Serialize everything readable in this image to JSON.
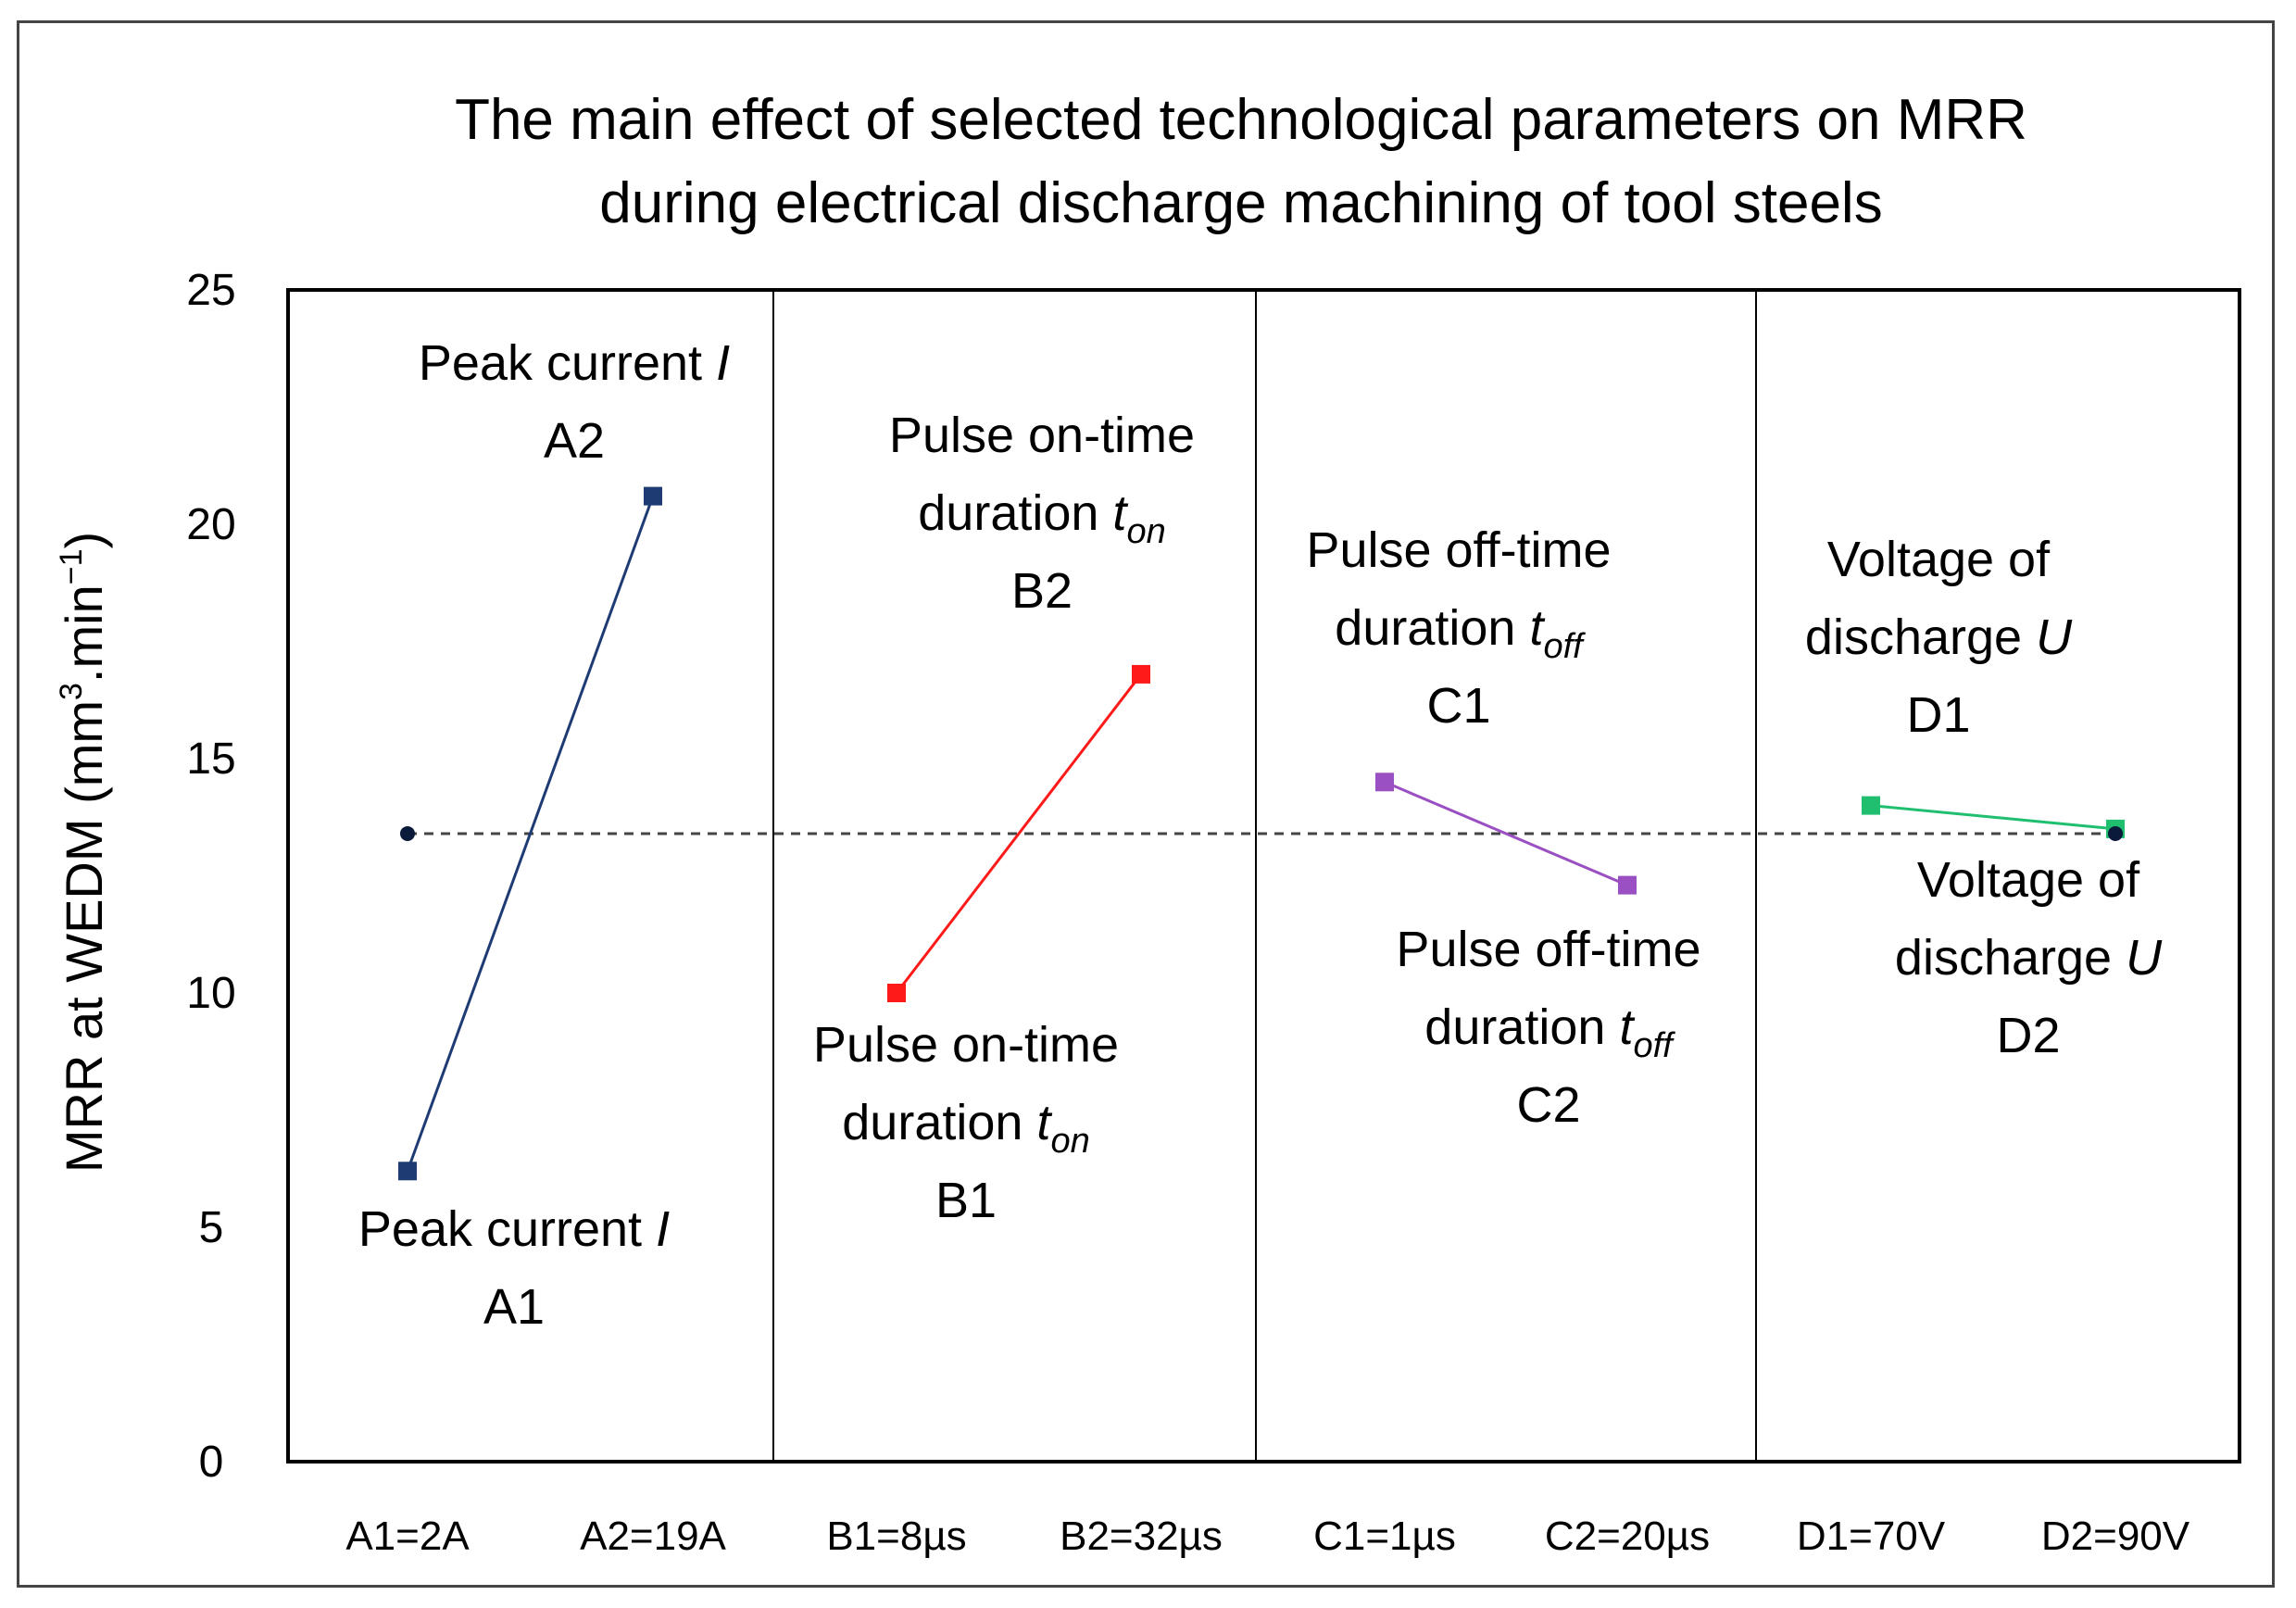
{
  "chart_data": {
    "type": "line",
    "title_lines": [
      "The main effect of selected technological parameters on MRR",
      "during electrical discharge machining of tool steels"
    ],
    "ylabel": "MRR at WEDM (mm³.min⁻¹)",
    "ylabel_parts": {
      "prefix": "MRR at WEDM (mm",
      "sup1": "3",
      "middle": ".min",
      "sup2": "−1",
      "suffix": ")"
    },
    "ylim": [
      0,
      25
    ],
    "yticks": [
      0,
      5,
      10,
      15,
      20,
      25
    ],
    "categories": [
      "A1=2A",
      "A2=19A",
      "B1=8µs",
      "B2=32µs",
      "C1=1µs",
      "C2=20µs",
      "D1=70V",
      "D2=90V"
    ],
    "grand_mean": 13.4,
    "series": [
      {
        "name": "Peak current I",
        "color": "#1f3b73",
        "x": [
          "A1=2A",
          "A2=19A"
        ],
        "values": [
          6.2,
          20.6
        ]
      },
      {
        "name": "Pulse on-time duration t_on",
        "color": "#ff1a1a",
        "x": [
          "B1=8µs",
          "B2=32µs"
        ],
        "values": [
          10.0,
          16.8
        ]
      },
      {
        "name": "Pulse off-time duration t_off",
        "color": "#9a4fc2",
        "x": [
          "C1=1µs",
          "C2=20µs"
        ],
        "values": [
          14.5,
          12.3
        ]
      },
      {
        "name": "Voltage of discharge U",
        "color": "#1fbf6f",
        "x": [
          "D1=70V",
          "D2=90V"
        ],
        "values": [
          14.0,
          13.5
        ]
      }
    ],
    "annotations": [
      {
        "id": "A1",
        "lines": [
          {
            "t": "Peak current ",
            "i": "I"
          },
          {
            "t": "A1"
          }
        ]
      },
      {
        "id": "A2",
        "lines": [
          {
            "t": "Peak current ",
            "i": "I"
          },
          {
            "t": "A2"
          }
        ]
      },
      {
        "id": "B1",
        "lines": [
          {
            "t": "Pulse on-time"
          },
          {
            "t": "duration ",
            "i": "t",
            "sub": "on"
          },
          {
            "t": "B1"
          }
        ]
      },
      {
        "id": "B2",
        "lines": [
          {
            "t": "Pulse on-time"
          },
          {
            "t": "duration ",
            "i": "t",
            "sub": "on"
          },
          {
            "t": "B2"
          }
        ]
      },
      {
        "id": "C1",
        "lines": [
          {
            "t": "Pulse off-time"
          },
          {
            "t": "duration ",
            "i": "t",
            "sub": "off"
          },
          {
            "t": "C1"
          }
        ]
      },
      {
        "id": "C2",
        "lines": [
          {
            "t": "Pulse off-time"
          },
          {
            "t": "duration ",
            "i": "t",
            "sub": "off"
          },
          {
            "t": "C2"
          }
        ]
      },
      {
        "id": "D1",
        "lines": [
          {
            "t": "Voltage of"
          },
          {
            "t": "discharge ",
            "i": "U"
          },
          {
            "t": "D1"
          }
        ]
      },
      {
        "id": "D2",
        "lines": [
          {
            "t": "Voltage of"
          },
          {
            "t": "discharge ",
            "i": "U"
          },
          {
            "t": "D2"
          }
        ]
      }
    ],
    "grid": false,
    "legend": "none"
  }
}
